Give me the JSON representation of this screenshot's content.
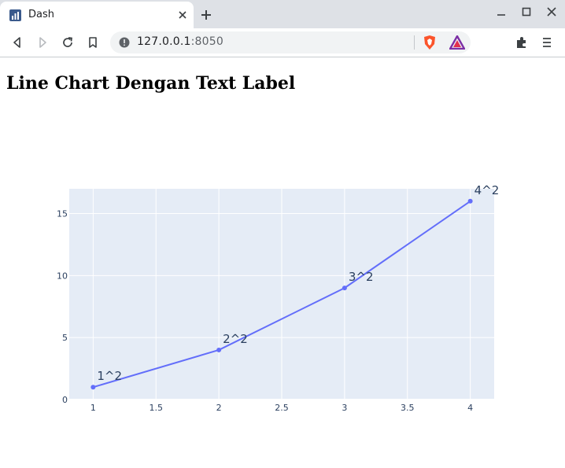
{
  "browser": {
    "tab": {
      "title": "Dash",
      "favicon": "dash-chart-icon"
    },
    "address": {
      "host": "127.0.0.1",
      "port": ":8050"
    },
    "icons": [
      "back-icon",
      "forward-icon",
      "reload-icon",
      "bookmark-icon",
      "info-icon",
      "brave-shields-icon",
      "brave-rewards-icon",
      "extensions-icon",
      "menu-icon",
      "minimize-icon",
      "maximize-icon",
      "close-icon",
      "new-tab-icon"
    ]
  },
  "page": {
    "heading": "Line Chart Dengan Text Label"
  },
  "chart_data": {
    "type": "line",
    "mode": "lines+markers+text",
    "x": [
      1,
      2,
      3,
      4
    ],
    "y": [
      1,
      4,
      9,
      16
    ],
    "text": [
      "1^2",
      "2^2",
      "3^2",
      "4^2"
    ],
    "xlim": [
      0.81,
      4.19
    ],
    "ylim": [
      0,
      17
    ],
    "x_ticks": [
      1,
      1.5,
      2,
      2.5,
      3,
      3.5,
      4
    ],
    "x_tick_labels": [
      "1",
      "1.5",
      "2",
      "2.5",
      "3",
      "3.5",
      "4"
    ],
    "y_ticks": [
      0,
      5,
      10,
      15
    ],
    "y_tick_labels": [
      "0",
      "5",
      "10",
      "15"
    ],
    "grid": true,
    "colors": {
      "line": "#636efa",
      "plot_bg": "#e5ecf6",
      "grid": "#ffffff",
      "tick_text": "#2a3f5f"
    }
  }
}
